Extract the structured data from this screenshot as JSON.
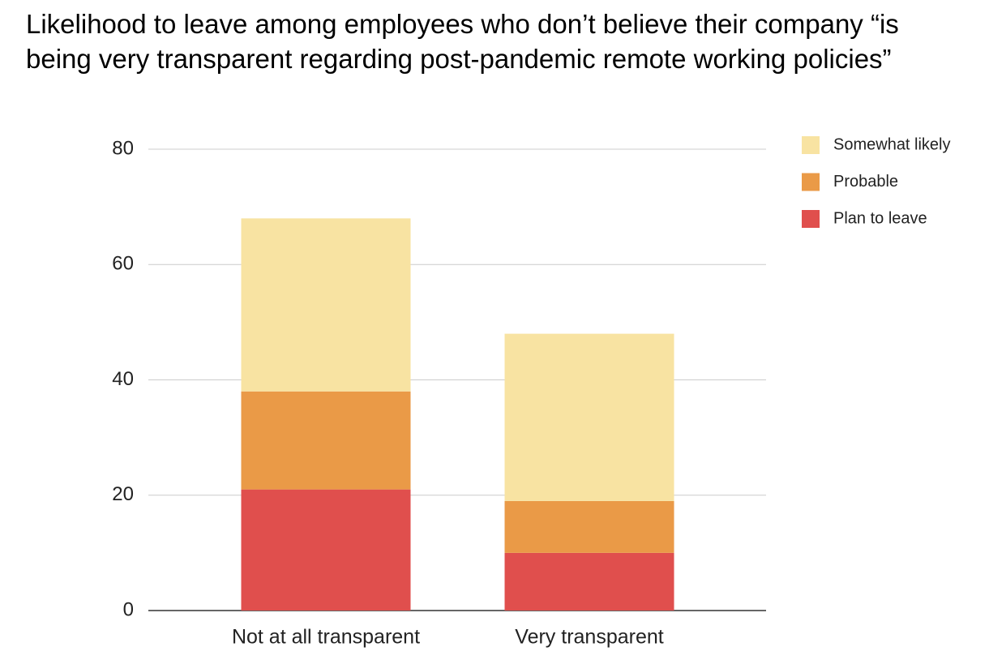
{
  "chart_data": {
    "type": "stacked_bar",
    "title": "Likelihood to leave among employees who don’t believe their company “is being very transparent regarding post-pandemic remote working policies”",
    "categories": [
      "Not at all transparent",
      "Very transparent"
    ],
    "series": [
      {
        "name": "Plan to leave",
        "color": "#e04f4d",
        "values": [
          21,
          10
        ]
      },
      {
        "name": "Probable",
        "color": "#ea9a47",
        "values": [
          17,
          9
        ]
      },
      {
        "name": "Somewhat likely",
        "color": "#f8e3a2",
        "values": [
          30,
          29
        ]
      }
    ],
    "ylim": [
      0,
      80
    ],
    "yticks": [
      0,
      20,
      40,
      60,
      80
    ],
    "grid": true,
    "legend": "right"
  }
}
